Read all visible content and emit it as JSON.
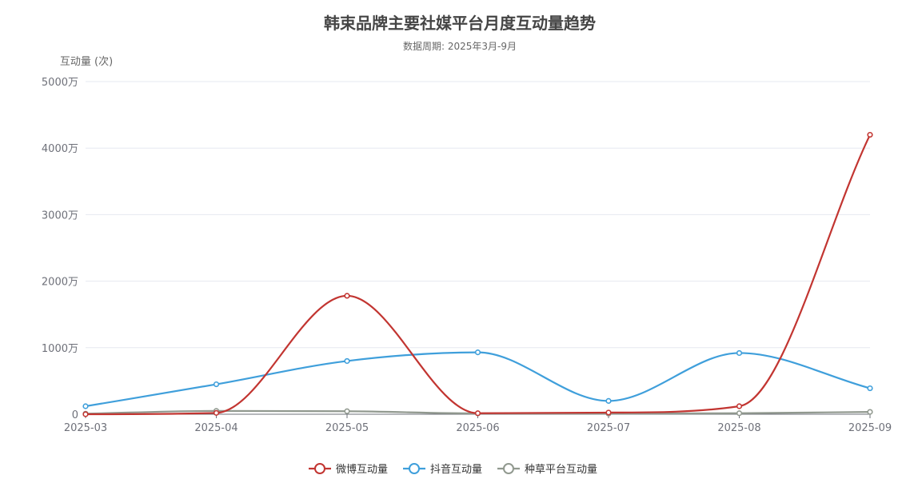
{
  "chart_data": {
    "type": "line",
    "title": "韩束品牌主要社媒平台月度互动量趋势",
    "subtitle": "数据周期: 2025年3月-9月",
    "ylabel": "互动量 (次)",
    "xlabel": "",
    "categories": [
      "2025-03",
      "2025-04",
      "2025-05",
      "2025-06",
      "2025-07",
      "2025-08",
      "2025-09"
    ],
    "ylim": [
      0,
      50000000
    ],
    "y_ticks": [
      0,
      10000000,
      20000000,
      30000000,
      40000000,
      50000000
    ],
    "y_tick_labels": [
      "0",
      "1000万",
      "2000万",
      "3000万",
      "4000万",
      "5000万"
    ],
    "grid": true,
    "smooth": true,
    "legend_position": "bottom-center",
    "series": [
      {
        "name": "微博互动量",
        "color": "#c23531",
        "values": [
          0,
          200000,
          17800000,
          150000,
          250000,
          1200000,
          42000000
        ]
      },
      {
        "name": "抖音互动量",
        "color": "#3f9fdb",
        "values": [
          1200000,
          4500000,
          8000000,
          9300000,
          2000000,
          9200000,
          3900000
        ]
      },
      {
        "name": "种草平台互动量",
        "color": "#91998f",
        "values": [
          80000,
          500000,
          450000,
          120000,
          100000,
          150000,
          350000
        ]
      }
    ]
  }
}
